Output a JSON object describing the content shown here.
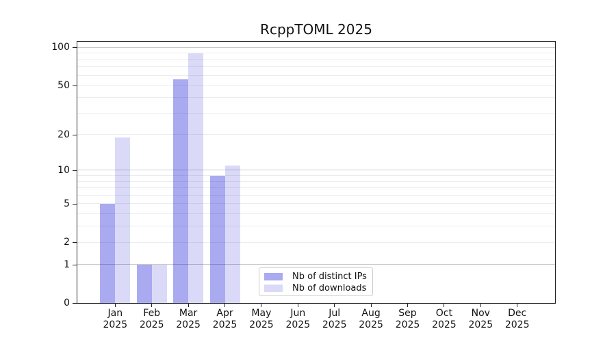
{
  "chart_data": {
    "type": "bar",
    "title": "RcppTOML 2025",
    "categories": [
      "Jan",
      "Feb",
      "Mar",
      "Apr",
      "May",
      "Jun",
      "Jul",
      "Aug",
      "Sep",
      "Oct",
      "Nov",
      "Dec"
    ],
    "category_year": "2025",
    "series": [
      {
        "name": "Nb of distinct IPs",
        "color": "rgba(10,10,215,0.345)",
        "color_hex": "#a9a9f1",
        "values": [
          5,
          1,
          56,
          9,
          0,
          0,
          0,
          0,
          0,
          0,
          0,
          0
        ]
      },
      {
        "name": "Nb of downloads",
        "color": "rgba(20,20,210,0.155)",
        "color_hex": "#dadaf8",
        "values": [
          19,
          1,
          90,
          11,
          0,
          0,
          0,
          0,
          0,
          0,
          0,
          0
        ]
      }
    ],
    "yscale": "log1p",
    "ylim": [
      0,
      111
    ],
    "xlabel": "",
    "ylabel": "",
    "y_ticks": [
      0,
      1,
      2,
      5,
      10,
      20,
      50,
      100
    ],
    "grid": "horizontal",
    "grid_minor_values": [
      2,
      3,
      4,
      5,
      6,
      7,
      8,
      9,
      20,
      30,
      40,
      50,
      60,
      70,
      80,
      90
    ],
    "grid_major_values": [
      1,
      10,
      100
    ],
    "legend_position": "inside-bottom-center"
  },
  "styles": {
    "background": "#ffffff",
    "spine_color": "#222222",
    "text_color": "#111111",
    "grid_minor_color": "#ececec",
    "grid_major_color": "#c8c8c8",
    "legend_border_color": "#cccccc"
  }
}
